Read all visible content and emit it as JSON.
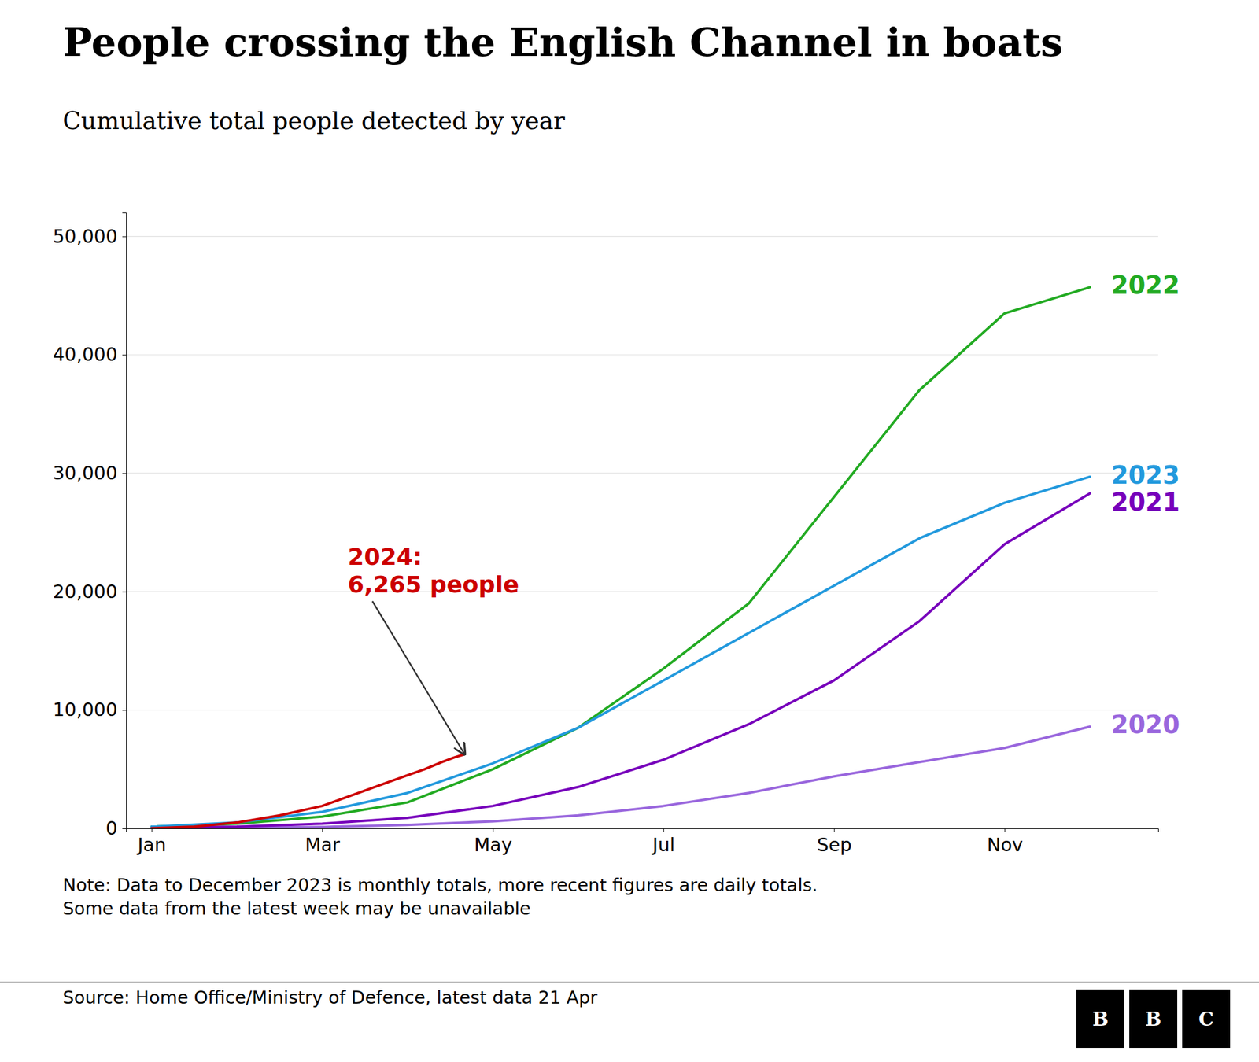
{
  "chart_data": {
    "type": "line",
    "title": "People crossing the English Channel in boats",
    "subtitle": "Cumulative total people detected by year",
    "note": "Note: Data to December 2023 is monthly totals, more recent figures are daily totals.\nSome data from the latest week may be unavailable",
    "source": "Source: Home Office/Ministry of Defence, latest data 21 Apr",
    "logo": [
      "B",
      "B",
      "C"
    ],
    "xlim": [
      -0.3,
      11.8
    ],
    "xticks": [
      {
        "value": 0,
        "label": "Jan"
      },
      {
        "value": 2,
        "label": "Mar"
      },
      {
        "value": 4,
        "label": "May"
      },
      {
        "value": 6,
        "label": "Jul"
      },
      {
        "value": 8,
        "label": "Sep"
      },
      {
        "value": 10,
        "label": "Nov"
      }
    ],
    "ylim": [
      0,
      52000
    ],
    "yticks": [
      0,
      {
        "value": 10000,
        "label": "10,000"
      },
      {
        "value": 20000,
        "label": "20,000"
      },
      {
        "value": 30000,
        "label": "30,000"
      },
      {
        "value": 40000,
        "label": "40,000"
      },
      {
        "value": 50000,
        "label": "50,000"
      }
    ],
    "grid": "y",
    "series": [
      {
        "name": "2020",
        "color": "#9966dd",
        "x": [
          0,
          1,
          2,
          3,
          4,
          5,
          6,
          7,
          8,
          9,
          10,
          11
        ],
        "values": [
          30,
          60,
          130,
          300,
          600,
          1100,
          1900,
          3000,
          4400,
          5600,
          6800,
          8600
        ]
      },
      {
        "name": "2021",
        "color": "#7700bb",
        "x": [
          0,
          1,
          2,
          3,
          4,
          5,
          6,
          7,
          8,
          9,
          10,
          11
        ],
        "values": [
          80,
          160,
          400,
          900,
          1900,
          3500,
          5800,
          8800,
          12500,
          17500,
          24000,
          28300
        ]
      },
      {
        "name": "2022",
        "color": "#22aa22",
        "x": [
          0,
          1,
          2,
          3,
          4,
          5,
          6,
          7,
          8,
          9,
          10,
          11
        ],
        "values": [
          150,
          400,
          1000,
          2200,
          5000,
          8500,
          13500,
          19000,
          28000,
          37000,
          43500,
          45700
        ]
      },
      {
        "name": "2023",
        "color": "#2299dd",
        "x": [
          0,
          1,
          2,
          3,
          4,
          5,
          6,
          7,
          8,
          9,
          10,
          11
        ],
        "values": [
          150,
          500,
          1400,
          3000,
          5500,
          8500,
          12500,
          16500,
          20500,
          24500,
          27500,
          29700
        ]
      },
      {
        "name": "2024",
        "color": "#cc0000",
        "x": [
          0,
          0.5,
          1,
          1.5,
          2,
          2.5,
          3,
          3.2,
          3.4,
          3.55,
          3.67
        ],
        "values": [
          20,
          150,
          500,
          1100,
          1900,
          3200,
          4500,
          5000,
          5600,
          6000,
          6265
        ]
      }
    ],
    "annotations": [
      {
        "text": "2022",
        "x": 11,
        "y": 45700,
        "color": "#22aa22"
      },
      {
        "text": "2023",
        "x": 11,
        "y": 29700,
        "color": "#2299dd"
      },
      {
        "text": "2021",
        "x": 11,
        "y": 28300,
        "color": "#7700bb"
      },
      {
        "text": "2020",
        "x": 11,
        "y": 8600,
        "color": "#9966dd"
      },
      {
        "text": "2024:\n6,265 people",
        "x": 2.3,
        "y": 19500,
        "color": "#cc0000",
        "arrow_x": 3.67,
        "arrow_y": 6265
      }
    ]
  }
}
